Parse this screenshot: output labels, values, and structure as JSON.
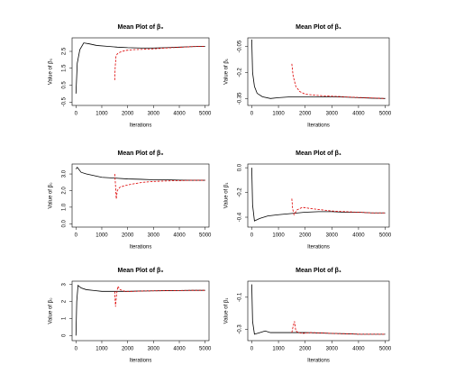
{
  "chart_data": [
    {
      "type": "line",
      "title": "Mean Plot of β₀",
      "xlabel": "Iterations",
      "ylabel": "Value of β₀",
      "xlim": [
        -150,
        5150
      ],
      "xticks": [
        0,
        1000,
        2000,
        3000,
        4000,
        5000
      ],
      "ylim": [
        -0.7,
        3.3
      ],
      "yticks": [
        -0.5,
        0.5,
        1.5,
        2.5
      ],
      "series": [
        {
          "color": "#000000",
          "dash": false,
          "x": [
            0,
            50,
            150,
            300,
            500,
            800,
            1200,
            1600,
            2000,
            2500,
            3000,
            3500,
            4000,
            4500,
            5000
          ],
          "values": [
            0.0,
            1.8,
            2.6,
            3.0,
            2.95,
            2.85,
            2.8,
            2.75,
            2.72,
            2.7,
            2.7,
            2.72,
            2.75,
            2.78,
            2.8
          ]
        },
        {
          "color": "#dd0000",
          "dash": true,
          "x": [
            1500,
            1520,
            1550,
            1600,
            1700,
            1900,
            2200,
            2600,
            3000,
            3500,
            4000,
            4500,
            5000
          ],
          "values": [
            0.8,
            1.6,
            2.2,
            2.35,
            2.45,
            2.55,
            2.6,
            2.62,
            2.65,
            2.7,
            2.74,
            2.78,
            2.8
          ]
        }
      ]
    },
    {
      "type": "line",
      "title": "Mean Plot of β₁",
      "xlabel": "Iterations",
      "ylabel": "Value of β₁",
      "xlim": [
        -150,
        5150
      ],
      "xticks": [
        0,
        1000,
        2000,
        3000,
        4000,
        5000
      ],
      "ylim": [
        -0.39,
        0.0
      ],
      "yticks": [
        -0.05,
        -0.2,
        -0.35
      ],
      "series": [
        {
          "color": "#000000",
          "dash": false,
          "x": [
            0,
            30,
            100,
            200,
            400,
            700,
            1000,
            1500,
            2000,
            2500,
            3000,
            3500,
            4000,
            4500,
            5000
          ],
          "values": [
            -0.01,
            -0.2,
            -0.28,
            -0.32,
            -0.34,
            -0.35,
            -0.345,
            -0.34,
            -0.34,
            -0.34,
            -0.34,
            -0.342,
            -0.345,
            -0.348,
            -0.35
          ]
        },
        {
          "color": "#dd0000",
          "dash": true,
          "x": [
            1500,
            1550,
            1650,
            1800,
            2000,
            2300,
            2700,
            3200,
            3700,
            4200,
            4700,
            5000
          ],
          "values": [
            -0.15,
            -0.22,
            -0.28,
            -0.31,
            -0.325,
            -0.33,
            -0.335,
            -0.338,
            -0.342,
            -0.345,
            -0.348,
            -0.35
          ]
        }
      ]
    },
    {
      "type": "line",
      "title": "Mean Plot of β₀",
      "xlabel": "Iterations",
      "ylabel": "Value of β₀",
      "xlim": [
        -150,
        5150
      ],
      "xticks": [
        0,
        1000,
        2000,
        3000,
        4000,
        5000
      ],
      "ylim": [
        -0.2,
        3.6
      ],
      "yticks": [
        {
          "value": 0,
          "label": "0.0"
        },
        {
          "value": 1,
          "label": "1.0"
        },
        {
          "value": 2,
          "label": "2.0"
        },
        {
          "value": 3,
          "label": "3.0"
        }
      ],
      "series": [
        {
          "color": "#000000",
          "dash": false,
          "x": [
            0,
            50,
            200,
            400,
            700,
            1000,
            1500,
            2000,
            2500,
            3000,
            3500,
            4000,
            4500,
            5000
          ],
          "values": [
            3.3,
            3.4,
            3.1,
            3.0,
            2.9,
            2.8,
            2.75,
            2.7,
            2.68,
            2.65,
            2.65,
            2.63,
            2.62,
            2.62
          ]
        },
        {
          "color": "#dd0000",
          "dash": true,
          "x": [
            1500,
            1520,
            1560,
            1600,
            1700,
            1900,
            2200,
            2600,
            3000,
            3500,
            4000,
            4500,
            5000
          ],
          "values": [
            3.0,
            2.6,
            1.5,
            2.0,
            2.2,
            2.3,
            2.4,
            2.5,
            2.55,
            2.58,
            2.6,
            2.62,
            2.62
          ]
        }
      ]
    },
    {
      "type": "line",
      "title": "Mean Plot of β₁",
      "xlabel": "Iterations",
      "ylabel": "Value of β₁",
      "xlim": [
        -150,
        5150
      ],
      "xticks": [
        0,
        1000,
        2000,
        3000,
        4000,
        5000
      ],
      "ylim": [
        -0.48,
        0.03
      ],
      "yticks": [
        {
          "value": 0,
          "label": "0.0"
        },
        -0.2,
        -0.4
      ],
      "series": [
        {
          "color": "#000000",
          "dash": false,
          "x": [
            0,
            30,
            100,
            300,
            600,
            1000,
            1500,
            2000,
            2500,
            3000,
            3500,
            4000,
            4500,
            5000
          ],
          "values": [
            0.0,
            -0.3,
            -0.43,
            -0.41,
            -0.39,
            -0.38,
            -0.37,
            -0.36,
            -0.355,
            -0.355,
            -0.36,
            -0.36,
            -0.365,
            -0.365
          ]
        },
        {
          "color": "#dd0000",
          "dash": true,
          "x": [
            1500,
            1530,
            1580,
            1700,
            1900,
            2200,
            2600,
            3000,
            3500,
            4000,
            4500,
            5000
          ],
          "values": [
            -0.25,
            -0.33,
            -0.38,
            -0.34,
            -0.32,
            -0.33,
            -0.34,
            -0.35,
            -0.355,
            -0.36,
            -0.365,
            -0.365
          ]
        }
      ]
    },
    {
      "type": "line",
      "title": "Mean Plot of β₀",
      "xlabel": "Iterations",
      "ylabel": "Value of β₀",
      "xlim": [
        -150,
        5150
      ],
      "xticks": [
        0,
        1000,
        2000,
        3000,
        4000,
        5000
      ],
      "ylim": [
        -0.3,
        3.2
      ],
      "yticks": [
        0,
        1,
        2,
        3
      ],
      "series": [
        {
          "color": "#000000",
          "dash": false,
          "x": [
            0,
            30,
            80,
            200,
            400,
            700,
            1000,
            1500,
            2000,
            2500,
            3000,
            3500,
            4000,
            4500,
            5000
          ],
          "values": [
            0.0,
            2.0,
            2.95,
            2.8,
            2.7,
            2.65,
            2.6,
            2.6,
            2.6,
            2.62,
            2.63,
            2.64,
            2.65,
            2.66,
            2.66
          ]
        },
        {
          "color": "#dd0000",
          "dash": true,
          "x": [
            1500,
            1530,
            1570,
            1620,
            1700,
            1900,
            2200,
            2600,
            3000,
            3500,
            4000,
            4500,
            5000
          ],
          "values": [
            2.6,
            1.7,
            2.4,
            2.9,
            2.7,
            2.6,
            2.6,
            2.62,
            2.63,
            2.64,
            2.65,
            2.66,
            2.66
          ]
        }
      ]
    },
    {
      "type": "line",
      "title": "Mean Plot of β₁",
      "xlabel": "Iterations",
      "ylabel": "Value of β₁",
      "xlim": [
        -150,
        5150
      ],
      "xticks": [
        0,
        1000,
        2000,
        3000,
        4000,
        5000
      ],
      "ylim": [
        -0.37,
        0.0
      ],
      "yticks": [
        -0.1,
        -0.3
      ],
      "series": [
        {
          "color": "#000000",
          "dash": false,
          "x": [
            0,
            30,
            100,
            300,
            500,
            700,
            1000,
            1500,
            2000,
            2500,
            3000,
            3500,
            4000,
            4500,
            5000
          ],
          "values": [
            -0.02,
            -0.25,
            -0.33,
            -0.32,
            -0.31,
            -0.32,
            -0.32,
            -0.32,
            -0.32,
            -0.322,
            -0.325,
            -0.327,
            -0.33,
            -0.33,
            -0.33
          ]
        },
        {
          "color": "#dd0000",
          "dash": true,
          "x": [
            1500,
            1550,
            1600,
            1650,
            1750,
            1900,
            2200,
            2600,
            3000,
            3500,
            4000,
            4500,
            5000
          ],
          "values": [
            -0.32,
            -0.28,
            -0.25,
            -0.31,
            -0.32,
            -0.325,
            -0.32,
            -0.322,
            -0.325,
            -0.327,
            -0.33,
            -0.33,
            -0.33
          ]
        }
      ]
    }
  ]
}
